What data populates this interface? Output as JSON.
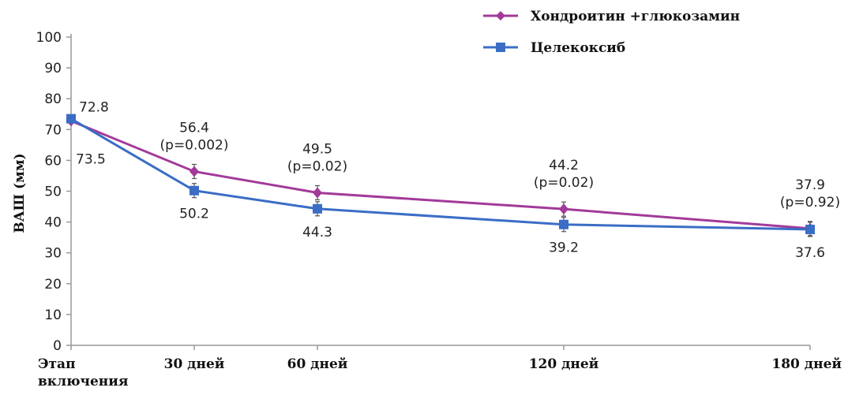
{
  "chart_data": {
    "type": "line",
    "ylabel": "ВАШ (мм)",
    "ylim": [
      0,
      100
    ],
    "yticks": [
      0,
      10,
      20,
      30,
      40,
      50,
      60,
      70,
      80,
      90,
      100
    ],
    "categories": [
      "Этап\nвключения",
      "30 дней",
      "60 дней",
      "120 дней",
      "180 дней"
    ],
    "x_days": [
      0,
      30,
      60,
      120,
      180
    ],
    "series": [
      {
        "name": "Хондроитин +глюкозамин",
        "color": "#a23a9a",
        "marker": "diamond",
        "values": [
          72.8,
          56.4,
          49.5,
          44.2,
          37.9
        ],
        "labels": [
          "72.8",
          "56.4\n(p=0.002)",
          "49.5\n(p=0.02)",
          "44.2\n(p=0.02)",
          "37.9\n(p=0.92)"
        ]
      },
      {
        "name": "Целекоксиб",
        "color": "#3b6dc5",
        "marker": "square",
        "values": [
          73.5,
          50.2,
          44.3,
          39.2,
          37.6
        ],
        "labels": [
          "73.5",
          "50.2",
          "44.3",
          "39.2",
          "37.6"
        ]
      }
    ],
    "legend": "top-right",
    "grid": false
  }
}
